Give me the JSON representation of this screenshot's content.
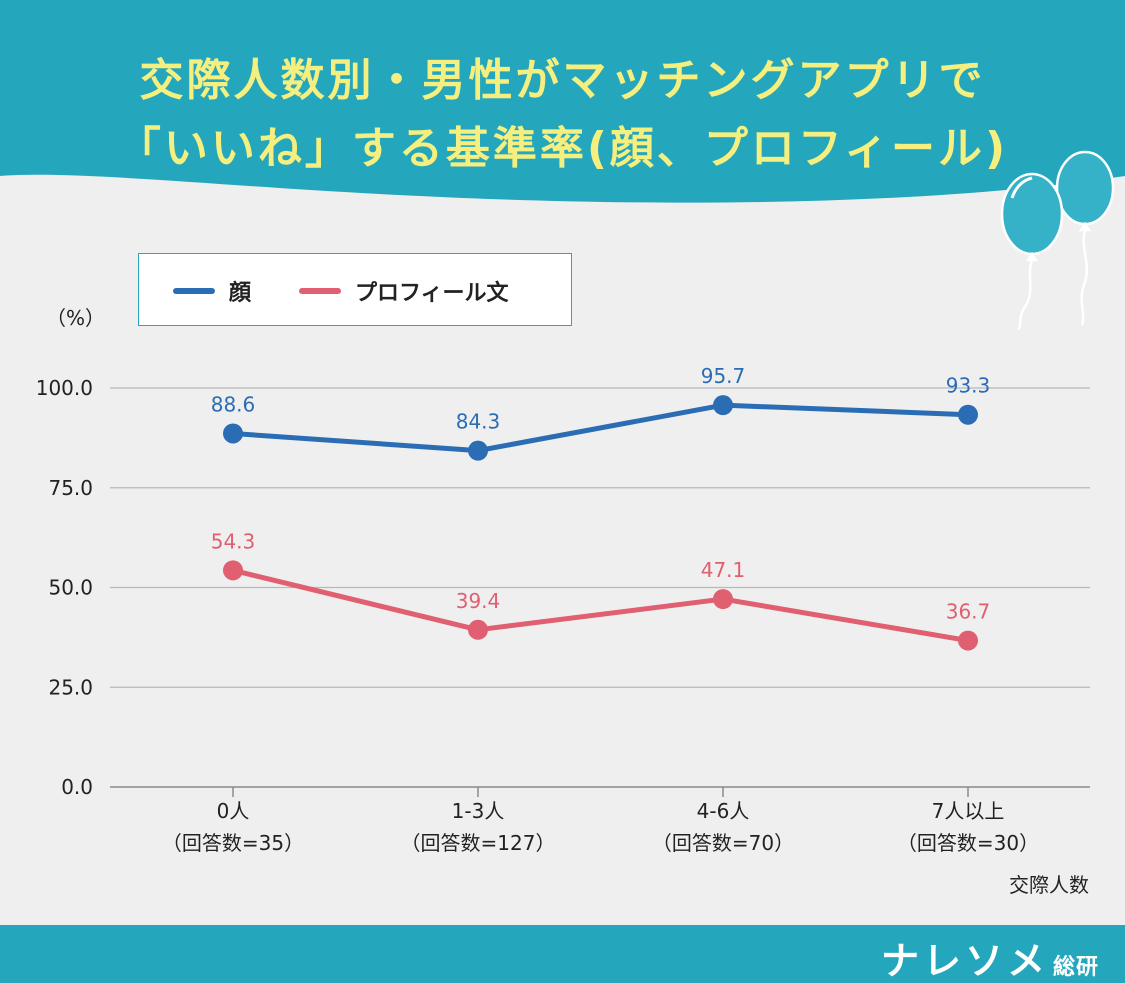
{
  "title": {
    "line1": "交際人数別・男性がマッチングアプリで",
    "line2": "「いいね」する基準率(顔、プロフィール)"
  },
  "colors": {
    "header_bg": "#24a6bd",
    "title_text": "#f4ef7e",
    "face_series": "#2b6db5",
    "profile_series": "#e05f70",
    "footer_bg": "#24a6bd"
  },
  "chart_data": {
    "type": "line",
    "title": "交際人数別・男性がマッチングアプリで「いいね」する基準率(顔、プロフィール)",
    "unit_label": "（%）",
    "xlabel": "交際人数",
    "ylabel": "（%）",
    "ylim": [
      0,
      100
    ],
    "yticks": [
      "0.0",
      "25.0",
      "50.0",
      "75.0",
      "100.0"
    ],
    "ytick_values": [
      0,
      25,
      50,
      75,
      100
    ],
    "grid": true,
    "legend_position": "top-left",
    "categories": [
      {
        "label": "0人",
        "sub": "（回答数=35）"
      },
      {
        "label": "1-3人",
        "sub": "（回答数=127）"
      },
      {
        "label": "4-6人",
        "sub": "（回答数=70）"
      },
      {
        "label": "7人以上",
        "sub": "（回答数=30）"
      }
    ],
    "series": [
      {
        "name": "顔",
        "color": "#2b6db5",
        "values": [
          88.6,
          84.3,
          95.7,
          93.3
        ],
        "labels": [
          "88.6",
          "84.3",
          "95.7",
          "93.3"
        ]
      },
      {
        "name": "プロフィール文",
        "color": "#e05f70",
        "values": [
          54.3,
          39.4,
          47.1,
          36.7
        ],
        "labels": [
          "54.3",
          "39.4",
          "47.1",
          "36.7"
        ]
      }
    ]
  },
  "footer": {
    "brand": "ナレソメ",
    "brand_sub": "総研"
  }
}
